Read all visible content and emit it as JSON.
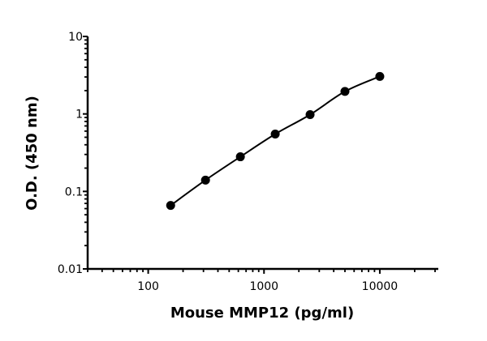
{
  "chart_data": {
    "type": "scatter",
    "title": "",
    "xlabel": "Mouse MMP12 (pg/ml)",
    "ylabel": "O.D. (450 nm)",
    "x_scale": "log",
    "y_scale": "log",
    "xlim": [
      30,
      32000
    ],
    "ylim": [
      0.01,
      10
    ],
    "x_ticks": [
      100,
      1000,
      10000
    ],
    "x_tick_labels": [
      "100",
      "1000",
      "10000"
    ],
    "y_ticks": [
      0.01,
      0.1,
      1,
      10
    ],
    "y_tick_labels": [
      "0.01",
      "0.1",
      "1",
      "10"
    ],
    "grid": false,
    "fit_curve": true,
    "color": "#000000",
    "series": [
      {
        "x": [
          156.25,
          312.5,
          625,
          1250,
          2500,
          5000,
          10000
        ],
        "y": [
          0.066,
          0.14,
          0.28,
          0.55,
          0.98,
          1.95,
          3.05
        ]
      }
    ]
  }
}
